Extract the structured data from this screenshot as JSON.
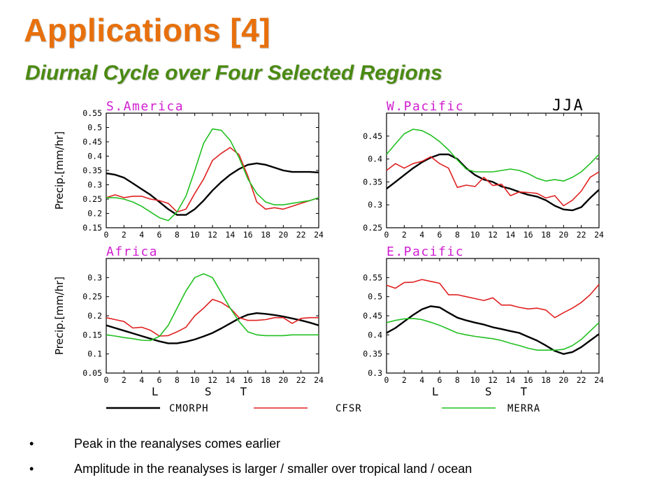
{
  "slide": {
    "title": "Applications [4]",
    "subtitle": "Diurnal Cycle over Four Selected Regions",
    "season": "JJA",
    "bullets": [
      "Peak in the reanalyses comes earlier",
      "Amplitude in the reanalyses is larger / smaller over tropical land / ocean"
    ],
    "bullet_symbol": "•"
  },
  "colors": {
    "CMORPH": "#000000",
    "CFSR": "#e02020",
    "MERRA": "#20c020",
    "panel_title": "#d01dd0"
  },
  "chart_data": [
    {
      "type": "line",
      "title": "S.America",
      "ylabel": "Precip.[mm/hr]",
      "xlabel": "",
      "x": [
        0,
        1,
        2,
        3,
        4,
        5,
        6,
        7,
        8,
        9,
        10,
        11,
        12,
        13,
        14,
        15,
        16,
        17,
        18,
        19,
        20,
        21,
        22,
        23,
        24
      ],
      "xticks": [
        "0",
        "2",
        "4",
        "6",
        "8",
        "10",
        "12",
        "14",
        "16",
        "18",
        "20",
        "22",
        "24"
      ],
      "ylim": [
        0.15,
        0.55
      ],
      "yticks": [
        "0.15",
        "0.2",
        "0.25",
        "0.3",
        "0.35",
        "0.4",
        "0.45",
        "0.5",
        "0.55"
      ],
      "series": [
        {
          "name": "CMORPH",
          "values": [
            0.34,
            0.335,
            0.325,
            0.305,
            0.285,
            0.265,
            0.24,
            0.215,
            0.195,
            0.195,
            0.215,
            0.245,
            0.28,
            0.31,
            0.335,
            0.355,
            0.37,
            0.375,
            0.37,
            0.36,
            0.35,
            0.345,
            0.345,
            0.345,
            0.343
          ]
        },
        {
          "name": "CFSR",
          "values": [
            0.255,
            0.265,
            0.255,
            0.26,
            0.26,
            0.25,
            0.245,
            0.235,
            0.205,
            0.215,
            0.27,
            0.32,
            0.385,
            0.41,
            0.43,
            0.405,
            0.33,
            0.24,
            0.215,
            0.22,
            0.215,
            0.225,
            0.235,
            0.245,
            0.255
          ]
        },
        {
          "name": "MERRA",
          "values": [
            0.255,
            0.255,
            0.25,
            0.24,
            0.225,
            0.205,
            0.185,
            0.175,
            0.205,
            0.26,
            0.35,
            0.445,
            0.495,
            0.49,
            0.455,
            0.395,
            0.32,
            0.27,
            0.24,
            0.23,
            0.23,
            0.235,
            0.24,
            0.245,
            0.255
          ]
        }
      ]
    },
    {
      "type": "line",
      "title": "W.Pacific",
      "ylabel": "",
      "xlabel": "",
      "x": [
        0,
        1,
        2,
        3,
        4,
        5,
        6,
        7,
        8,
        9,
        10,
        11,
        12,
        13,
        14,
        15,
        16,
        17,
        18,
        19,
        20,
        21,
        22,
        23,
        24
      ],
      "xticks": [
        "0",
        "2",
        "4",
        "6",
        "8",
        "10",
        "12",
        "14",
        "16",
        "18",
        "20",
        "22",
        "24"
      ],
      "ylim": [
        0.25,
        0.5
      ],
      "yticks": [
        "0.25",
        "0.3",
        "0.35",
        "0.4",
        "0.45"
      ],
      "series": [
        {
          "name": "CMORPH",
          "values": [
            0.335,
            0.35,
            0.365,
            0.38,
            0.393,
            0.403,
            0.41,
            0.41,
            0.4,
            0.38,
            0.365,
            0.355,
            0.35,
            0.34,
            0.335,
            0.328,
            0.322,
            0.318,
            0.31,
            0.298,
            0.29,
            0.288,
            0.295,
            0.315,
            0.333
          ]
        },
        {
          "name": "CFSR",
          "values": [
            0.375,
            0.39,
            0.38,
            0.39,
            0.395,
            0.405,
            0.39,
            0.38,
            0.338,
            0.343,
            0.34,
            0.36,
            0.342,
            0.345,
            0.32,
            0.328,
            0.327,
            0.325,
            0.315,
            0.32,
            0.298,
            0.31,
            0.33,
            0.36,
            0.372
          ]
        },
        {
          "name": "MERRA",
          "values": [
            0.41,
            0.433,
            0.455,
            0.465,
            0.462,
            0.452,
            0.438,
            0.42,
            0.398,
            0.378,
            0.372,
            0.372,
            0.372,
            0.375,
            0.378,
            0.375,
            0.368,
            0.358,
            0.352,
            0.355,
            0.352,
            0.36,
            0.372,
            0.39,
            0.41
          ]
        }
      ]
    },
    {
      "type": "line",
      "title": "Africa",
      "ylabel": "Precip.[mm/hr]",
      "xlabel": "L S T",
      "x": [
        0,
        1,
        2,
        3,
        4,
        5,
        6,
        7,
        8,
        9,
        10,
        11,
        12,
        13,
        14,
        15,
        16,
        17,
        18,
        19,
        20,
        21,
        22,
        23,
        24
      ],
      "xticks": [
        "0",
        "2",
        "4",
        "6",
        "8",
        "10",
        "12",
        "14",
        "16",
        "18",
        "20",
        "22",
        "24"
      ],
      "ylim": [
        0.05,
        0.35
      ],
      "yticks": [
        "0.05",
        "0.1",
        "0.15",
        "0.2",
        "0.25",
        "0.3"
      ],
      "series": [
        {
          "name": "CMORPH",
          "values": [
            0.175,
            0.168,
            0.161,
            0.154,
            0.147,
            0.14,
            0.133,
            0.128,
            0.128,
            0.132,
            0.138,
            0.146,
            0.155,
            0.167,
            0.18,
            0.193,
            0.203,
            0.207,
            0.205,
            0.202,
            0.198,
            0.193,
            0.188,
            0.182,
            0.175
          ]
        },
        {
          "name": "CFSR",
          "values": [
            0.195,
            0.19,
            0.185,
            0.168,
            0.17,
            0.162,
            0.147,
            0.148,
            0.158,
            0.17,
            0.2,
            0.22,
            0.243,
            0.235,
            0.22,
            0.195,
            0.188,
            0.188,
            0.19,
            0.195,
            0.195,
            0.18,
            0.193,
            0.195,
            0.195
          ]
        },
        {
          "name": "MERRA",
          "values": [
            0.15,
            0.147,
            0.143,
            0.14,
            0.136,
            0.135,
            0.146,
            0.175,
            0.22,
            0.265,
            0.3,
            0.31,
            0.3,
            0.26,
            0.22,
            0.185,
            0.158,
            0.15,
            0.148,
            0.148,
            0.148,
            0.15,
            0.15,
            0.15,
            0.15
          ]
        }
      ]
    },
    {
      "type": "line",
      "title": "E.Pacific",
      "ylabel": "",
      "xlabel": "L S T",
      "x": [
        0,
        1,
        2,
        3,
        4,
        5,
        6,
        7,
        8,
        9,
        10,
        11,
        12,
        13,
        14,
        15,
        16,
        17,
        18,
        19,
        20,
        21,
        22,
        23,
        24
      ],
      "xticks": [
        "0",
        "2",
        "4",
        "6",
        "8",
        "10",
        "12",
        "14",
        "16",
        "18",
        "20",
        "22",
        "24"
      ],
      "ylim": [
        0.3,
        0.6
      ],
      "yticks": [
        "0.3",
        "0.35",
        "0.4",
        "0.45",
        "0.5",
        "0.55"
      ],
      "series": [
        {
          "name": "CMORPH",
          "values": [
            0.405,
            0.418,
            0.435,
            0.452,
            0.467,
            0.475,
            0.472,
            0.458,
            0.445,
            0.438,
            0.432,
            0.427,
            0.42,
            0.415,
            0.41,
            0.405,
            0.395,
            0.385,
            0.372,
            0.358,
            0.35,
            0.355,
            0.368,
            0.385,
            0.402
          ]
        },
        {
          "name": "CFSR",
          "values": [
            0.53,
            0.522,
            0.537,
            0.538,
            0.545,
            0.54,
            0.535,
            0.505,
            0.505,
            0.5,
            0.495,
            0.49,
            0.497,
            0.478,
            0.478,
            0.472,
            0.468,
            0.47,
            0.465,
            0.445,
            0.458,
            0.47,
            0.485,
            0.505,
            0.532
          ]
        },
        {
          "name": "MERRA",
          "values": [
            0.432,
            0.438,
            0.442,
            0.443,
            0.44,
            0.433,
            0.425,
            0.415,
            0.405,
            0.4,
            0.396,
            0.393,
            0.39,
            0.385,
            0.378,
            0.372,
            0.365,
            0.36,
            0.36,
            0.36,
            0.362,
            0.372,
            0.388,
            0.41,
            0.432
          ]
        }
      ]
    }
  ],
  "legend": {
    "position": "bottom",
    "entries": [
      "CMORPH",
      "CFSR",
      "MERRA"
    ]
  }
}
